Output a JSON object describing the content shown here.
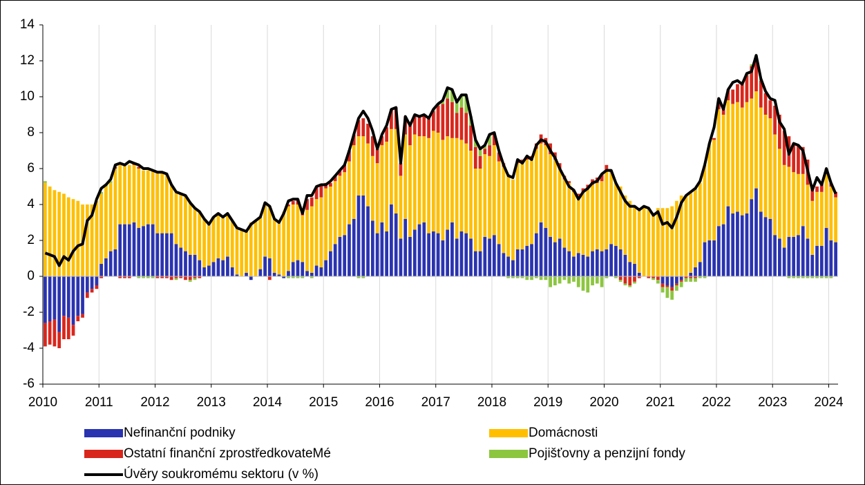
{
  "chart_data": {
    "type": "bar",
    "stacked": true,
    "legend": "bottom",
    "categories": [
      "2010",
      null,
      null,
      null,
      null,
      null,
      null,
      null,
      null,
      null,
      null,
      null,
      "2011",
      null,
      null,
      null,
      null,
      null,
      null,
      null,
      null,
      null,
      null,
      null,
      "2012",
      null,
      null,
      null,
      null,
      null,
      null,
      null,
      null,
      null,
      null,
      null,
      "2013",
      null,
      null,
      null,
      null,
      null,
      null,
      null,
      null,
      null,
      null,
      null,
      "2014",
      null,
      null,
      null,
      null,
      null,
      null,
      null,
      null,
      null,
      null,
      null,
      "2015",
      null,
      null,
      null,
      null,
      null,
      null,
      null,
      null,
      null,
      null,
      null,
      "2016",
      null,
      null,
      null,
      null,
      null,
      null,
      null,
      null,
      null,
      null,
      null,
      "2017",
      null,
      null,
      null,
      null,
      null,
      null,
      null,
      null,
      null,
      null,
      null,
      "2018",
      null,
      null,
      null,
      null,
      null,
      null,
      null,
      null,
      null,
      null,
      null,
      "2019",
      null,
      null,
      null,
      null,
      null,
      null,
      null,
      null,
      null,
      null,
      null,
      "2020",
      null,
      null,
      null,
      null,
      null,
      null,
      null,
      null,
      null,
      null,
      null,
      "2021",
      null,
      null,
      null,
      null,
      null,
      null,
      null,
      null,
      null,
      null,
      null,
      "2022",
      null,
      null,
      null,
      null,
      null,
      null,
      null,
      null,
      null,
      null,
      null,
      "2023",
      null,
      null,
      null,
      null,
      null,
      null,
      null,
      null,
      null,
      null,
      null,
      "2024",
      null
    ],
    "ylim": [
      -6,
      14
    ],
    "yticks": [
      -6,
      -4,
      -2,
      0,
      2,
      4,
      6,
      8,
      10,
      12,
      14
    ],
    "grid": true,
    "series": [
      {
        "name": "Nefinanční podniky",
        "color": "#2a33b0",
        "values": [
          -2.6,
          -2.5,
          -2.4,
          -3.1,
          -2.2,
          -2.3,
          -2.7,
          -2.2,
          -2.1,
          -0.9,
          -0.7,
          -0.5,
          0.7,
          1.0,
          1.4,
          1.5,
          2.9,
          2.9,
          2.9,
          3.0,
          2.7,
          2.8,
          2.9,
          2.9,
          2.4,
          2.4,
          2.4,
          2.4,
          1.8,
          1.6,
          1.4,
          1.2,
          1.2,
          0.9,
          0.5,
          0.6,
          0.8,
          1.0,
          0.9,
          1.1,
          0.5,
          0.1,
          0,
          0.2,
          -0.2,
          0,
          0.4,
          1.1,
          1.0,
          0.2,
          0.1,
          -0.1,
          0.3,
          0.8,
          0.9,
          0.8,
          0.3,
          0.2,
          0.6,
          0.5,
          0.9,
          1.4,
          1.8,
          2.2,
          2.3,
          2.9,
          3.2,
          4.5,
          4.5,
          3.9,
          3.1,
          2.4,
          3.0,
          2.5,
          4.0,
          3.5,
          2.1,
          3.2,
          2.2,
          2.6,
          2.9,
          3.0,
          2.4,
          2.5,
          2.4,
          2.0,
          2.6,
          3.0,
          2.1,
          2.5,
          2.4,
          2.1,
          1.4,
          1.4,
          2.2,
          2.1,
          2.3,
          1.8,
          1.3,
          1.1,
          0.9,
          1.5,
          1.5,
          1.7,
          1.8,
          2.4,
          3.0,
          2.7,
          2.2,
          1.9,
          2.1,
          1.6,
          1.4,
          1.1,
          1.3,
          1.2,
          1.1,
          1.4,
          1.5,
          1.4,
          1.5,
          1.8,
          1.7,
          1.5,
          1.2,
          0.8,
          0.7,
          0.2,
          0,
          0,
          0,
          0,
          -0.4,
          -0.5,
          -0.6,
          -0.4,
          -0.2,
          0,
          0.2,
          0.5,
          0.8,
          1.9,
          2.0,
          2.0,
          2.8,
          2.9,
          3.9,
          3.5,
          3.6,
          3.4,
          3.5,
          4.3,
          4.9,
          3.6,
          3.3,
          3.2,
          2.3,
          2.1,
          1.6,
          2.2,
          2.2,
          2.3,
          2.8,
          2.1,
          1.2,
          1.7,
          1.7,
          2.7,
          2.0,
          1.9
        ]
      },
      {
        "name": "Domácnosti",
        "color": "#ffbf00",
        "values": [
          5.2,
          5.0,
          4.8,
          4.7,
          4.6,
          4.4,
          4.3,
          4.2,
          4.0,
          4.0,
          4.0,
          4.2,
          3.9,
          4.0,
          3.8,
          4.5,
          3.3,
          3.3,
          3.3,
          3.2,
          3.3,
          3.1,
          3.0,
          3.0,
          3.4,
          3.4,
          3.3,
          2.7,
          2.9,
          3.0,
          3.1,
          2.9,
          2.6,
          2.7,
          2.7,
          2.3,
          2.5,
          2.5,
          2.4,
          2.4,
          2.6,
          2.6,
          2.6,
          2.3,
          3.0,
          3.1,
          2.9,
          3.0,
          2.9,
          3.0,
          2.9,
          3.6,
          3.6,
          3.2,
          3.1,
          2.6,
          3.4,
          3.7,
          3.7,
          3.9,
          4.0,
          3.6,
          3.5,
          3.4,
          3.5,
          3.5,
          4.1,
          3.3,
          3.3,
          3.5,
          3.6,
          3.9,
          4.3,
          5.0,
          4.2,
          4.7,
          3.5,
          4.7,
          5.1,
          5.3,
          4.9,
          4.8,
          5.3,
          5.6,
          5.6,
          5.6,
          5.2,
          4.7,
          5.6,
          5.1,
          5.0,
          4.9,
          4.6,
          4.6,
          4.6,
          4.6,
          5.0,
          4.6,
          4.8,
          4.6,
          4.5,
          4.8,
          4.9,
          4.8,
          4.7,
          4.7,
          4.4,
          4.6,
          4.6,
          4.6,
          3.9,
          3.8,
          3.8,
          3.6,
          3.2,
          3.5,
          3.8,
          3.7,
          3.7,
          3.9,
          4.4,
          4.0,
          3.5,
          3.5,
          3.3,
          3.4,
          3.2,
          3.6,
          3.9,
          3.8,
          3.4,
          3.8,
          3.8,
          3.8,
          3.9,
          4.2,
          4.5,
          4.5,
          4.5,
          4.4,
          4.4,
          4.3,
          5.4,
          5.6,
          6.5,
          6.1,
          5.9,
          6.1,
          6.1,
          6.0,
          6.2,
          5.6,
          5.4,
          5.8,
          5.7,
          5.6,
          5.6,
          5.0,
          4.6,
          3.9,
          3.6,
          3.4,
          2.9,
          3.0,
          3.0,
          3.0,
          3.0,
          3.0,
          3.0,
          2.5
        ]
      },
      {
        "name": "Ostatní finanční zprostředkovateMé",
        "color": "#d9261c",
        "values": [
          -1.3,
          -1.3,
          -1.5,
          -0.9,
          -1.3,
          -1.2,
          -0.6,
          -0.3,
          -0.2,
          -0.3,
          -0.2,
          -0.2,
          -0.1,
          0,
          0,
          0.1,
          -0.1,
          -0.1,
          -0.1,
          0.1,
          0.1,
          0,
          0,
          0,
          -0.1,
          -0.1,
          -0.1,
          -0.2,
          -0.1,
          -0.1,
          -0.2,
          -0.2,
          -0.1,
          -0.1,
          0,
          0,
          0,
          0,
          0,
          0,
          0,
          0,
          0,
          0,
          0,
          0,
          0,
          0,
          -0.2,
          0,
          0,
          0,
          0.1,
          0.2,
          0.3,
          0.2,
          0.6,
          0.5,
          0.7,
          0.7,
          0.3,
          0.2,
          0.3,
          0.3,
          0.4,
          0.6,
          0.6,
          0.9,
          1.0,
          1.1,
          1.1,
          0.8,
          0.5,
          0.8,
          1.1,
          1.2,
          0.7,
          1.0,
          1.1,
          1.1,
          1.1,
          1.2,
          1.1,
          1.1,
          1.5,
          2.0,
          2.1,
          2.0,
          1.4,
          1.8,
          1.7,
          1.4,
          1.2,
          0.7,
          0.3,
          0.6,
          0.7,
          0.5,
          0.2,
          0,
          0,
          0.2,
          0.1,
          0.2,
          0.2,
          0.3,
          0.5,
          0.4,
          0.6,
          0.4,
          0.3,
          0.2,
          0.1,
          0.1,
          0.1,
          0.2,
          0.2,
          0.3,
          0.3,
          0.4,
          0.3,
          0.1,
          0,
          -0.2,
          -0.4,
          -0.5,
          -0.3,
          -0.1,
          0,
          -0.1,
          -0.1,
          -0.2,
          -0.2,
          -0.1,
          -0.2,
          -0.1,
          -0.1,
          -0.1,
          -0.1,
          -0.1,
          0,
          0,
          0,
          0.1,
          0.6,
          0.4,
          0.6,
          0.8,
          1.0,
          1.3,
          1.5,
          1.8,
          1.9,
          1.5,
          1.2,
          1.0,
          1.6,
          1.9,
          1.9,
          1.7,
          1.6,
          1.6,
          1.5,
          1.4,
          0.9,
          0.3,
          0.5,
          0.3,
          0.2,
          0.3
        ]
      },
      {
        "name": "Pojišťovny a penzijní fondy",
        "color": "#8cc63f",
        "values": [
          0.1,
          0,
          0,
          0,
          0,
          0,
          0,
          0,
          0,
          0,
          0,
          0,
          0.1,
          0.1,
          0.1,
          0.1,
          0,
          0,
          0,
          0,
          -0.1,
          -0.1,
          -0.1,
          -0.1,
          0,
          0,
          0,
          0,
          -0.1,
          0,
          0,
          -0.1,
          -0.1,
          0,
          0,
          0,
          0,
          0,
          0,
          0,
          0,
          0,
          0,
          0,
          0,
          0,
          0,
          0,
          0,
          0,
          0,
          0,
          -0.1,
          -0.1,
          -0.1,
          -0.1,
          0,
          -0.1,
          0,
          0,
          0,
          0,
          0,
          0,
          0,
          0,
          0,
          -0.1,
          -0.1,
          0,
          0,
          0,
          0,
          0,
          0,
          0,
          0,
          0,
          0,
          0,
          0,
          0,
          0,
          0.1,
          0.1,
          0.2,
          0.6,
          0.7,
          0.6,
          0.7,
          1.0,
          0.5,
          0.4,
          0.4,
          0.2,
          0.6,
          0,
          0,
          0,
          -0.1,
          -0.1,
          -0.1,
          -0.1,
          -0.2,
          -0.2,
          -0.1,
          -0.2,
          -0.2,
          -0.6,
          -0.5,
          -0.4,
          -0.2,
          -0.4,
          -0.3,
          -0.6,
          -0.8,
          -0.9,
          -0.5,
          -0.4,
          -0.6,
          -0.1,
          0,
          -0.1,
          -0.1,
          -0.1,
          -0.1,
          -0.1,
          0,
          0,
          0,
          -0.1,
          -0.2,
          -0.3,
          -0.6,
          -0.5,
          -0.3,
          -0.3,
          -0.2,
          -0.2,
          -0.2,
          -0.1,
          -0.1,
          0,
          0,
          0,
          0,
          0,
          0,
          0,
          0,
          0.1,
          0.1,
          0.1,
          0.1,
          0,
          0,
          0,
          0,
          0,
          -0.1,
          -0.1,
          -0.1,
          -0.1,
          -0.1,
          -0.1,
          -0.1,
          -0.1,
          -0.1,
          -0.1,
          0
        ]
      },
      {
        "name": "Úvěry soukromému sektoru (v %)",
        "type": "line",
        "color": "#000000",
        "values": [
          1.3,
          1.2,
          1.1,
          0.6,
          1.1,
          0.9,
          1.4,
          1.7,
          1.8,
          3.1,
          3.4,
          4.3,
          4.9,
          5.1,
          5.4,
          6.2,
          6.3,
          6.2,
          6.4,
          6.3,
          6.2,
          6.0,
          6.0,
          5.9,
          5.8,
          5.8,
          5.7,
          5.1,
          4.7,
          4.6,
          4.5,
          4.1,
          3.8,
          3.6,
          3.2,
          2.9,
          3.3,
          3.5,
          3.3,
          3.5,
          3.1,
          2.7,
          2.6,
          2.5,
          2.9,
          3.1,
          3.3,
          4.1,
          3.9,
          3.2,
          3.0,
          3.5,
          4.2,
          4.3,
          4.3,
          3.5,
          4.5,
          4.5,
          5.0,
          5.1,
          5.1,
          5.3,
          5.6,
          5.9,
          6.2,
          7.0,
          7.9,
          8.8,
          9.2,
          8.8,
          8.1,
          7.1,
          7.9,
          8.4,
          9.3,
          9.4,
          6.3,
          8.9,
          8.4,
          9.0,
          8.9,
          9.0,
          8.8,
          9.3,
          9.6,
          9.8,
          10.5,
          10.4,
          9.7,
          10.1,
          10.1,
          8.9,
          7.6,
          7.1,
          7.3,
          7.9,
          8.0,
          7.0,
          6.2,
          5.6,
          5.5,
          6.5,
          6.3,
          6.7,
          6.5,
          7.3,
          7.6,
          7.5,
          7.0,
          6.6,
          6.0,
          5.5,
          5.0,
          4.8,
          4.3,
          4.7,
          4.9,
          5.2,
          5.3,
          5.7,
          5.9,
          5.9,
          5.2,
          4.7,
          4.2,
          3.9,
          3.9,
          3.7,
          3.9,
          3.8,
          3.4,
          3.6,
          2.9,
          3.0,
          2.7,
          3.3,
          4.1,
          4.5,
          4.7,
          4.9,
          5.3,
          6.2,
          7.4,
          8.3,
          9.9,
          9.3,
          10.4,
          10.8,
          10.9,
          10.7,
          11.3,
          11.4,
          12.3,
          11.0,
          10.3,
          9.9,
          9.8,
          8.6,
          8.2,
          6.8,
          7.4,
          7.3,
          7.0,
          5.9,
          4.8,
          5.5,
          5.1,
          6.0,
          5.2,
          4.6
        ]
      }
    ]
  }
}
